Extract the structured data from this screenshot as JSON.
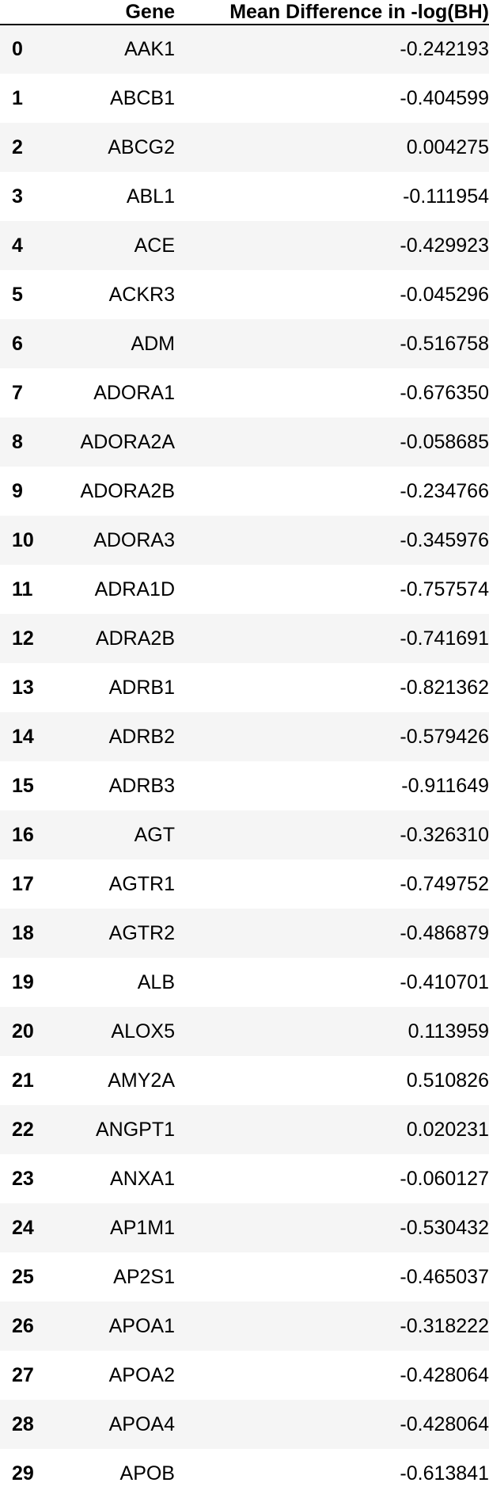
{
  "table": {
    "columns": {
      "index": "",
      "gene": "Gene",
      "value": "Mean Difference in -log(BH)"
    },
    "rows": [
      {
        "index": "0",
        "gene": "AAK1",
        "value": "-0.242193"
      },
      {
        "index": "1",
        "gene": "ABCB1",
        "value": "-0.404599"
      },
      {
        "index": "2",
        "gene": "ABCG2",
        "value": "0.004275"
      },
      {
        "index": "3",
        "gene": "ABL1",
        "value": "-0.111954"
      },
      {
        "index": "4",
        "gene": "ACE",
        "value": "-0.429923"
      },
      {
        "index": "5",
        "gene": "ACKR3",
        "value": "-0.045296"
      },
      {
        "index": "6",
        "gene": "ADM",
        "value": "-0.516758"
      },
      {
        "index": "7",
        "gene": "ADORA1",
        "value": "-0.676350"
      },
      {
        "index": "8",
        "gene": "ADORA2A",
        "value": "-0.058685"
      },
      {
        "index": "9",
        "gene": "ADORA2B",
        "value": "-0.234766"
      },
      {
        "index": "10",
        "gene": "ADORA3",
        "value": "-0.345976"
      },
      {
        "index": "11",
        "gene": "ADRA1D",
        "value": "-0.757574"
      },
      {
        "index": "12",
        "gene": "ADRA2B",
        "value": "-0.741691"
      },
      {
        "index": "13",
        "gene": "ADRB1",
        "value": "-0.821362"
      },
      {
        "index": "14",
        "gene": "ADRB2",
        "value": "-0.579426"
      },
      {
        "index": "15",
        "gene": "ADRB3",
        "value": "-0.911649"
      },
      {
        "index": "16",
        "gene": "AGT",
        "value": "-0.326310"
      },
      {
        "index": "17",
        "gene": "AGTR1",
        "value": "-0.749752"
      },
      {
        "index": "18",
        "gene": "AGTR2",
        "value": "-0.486879"
      },
      {
        "index": "19",
        "gene": "ALB",
        "value": "-0.410701"
      },
      {
        "index": "20",
        "gene": "ALOX5",
        "value": "0.113959"
      },
      {
        "index": "21",
        "gene": "AMY2A",
        "value": "0.510826"
      },
      {
        "index": "22",
        "gene": "ANGPT1",
        "value": "0.020231"
      },
      {
        "index": "23",
        "gene": "ANXA1",
        "value": "-0.060127"
      },
      {
        "index": "24",
        "gene": "AP1M1",
        "value": "-0.530432"
      },
      {
        "index": "25",
        "gene": "AP2S1",
        "value": "-0.465037"
      },
      {
        "index": "26",
        "gene": "APOA1",
        "value": "-0.318222"
      },
      {
        "index": "27",
        "gene": "APOA2",
        "value": "-0.428064"
      },
      {
        "index": "28",
        "gene": "APOA4",
        "value": "-0.428064"
      },
      {
        "index": "29",
        "gene": "APOB",
        "value": "-0.613841"
      }
    ]
  }
}
